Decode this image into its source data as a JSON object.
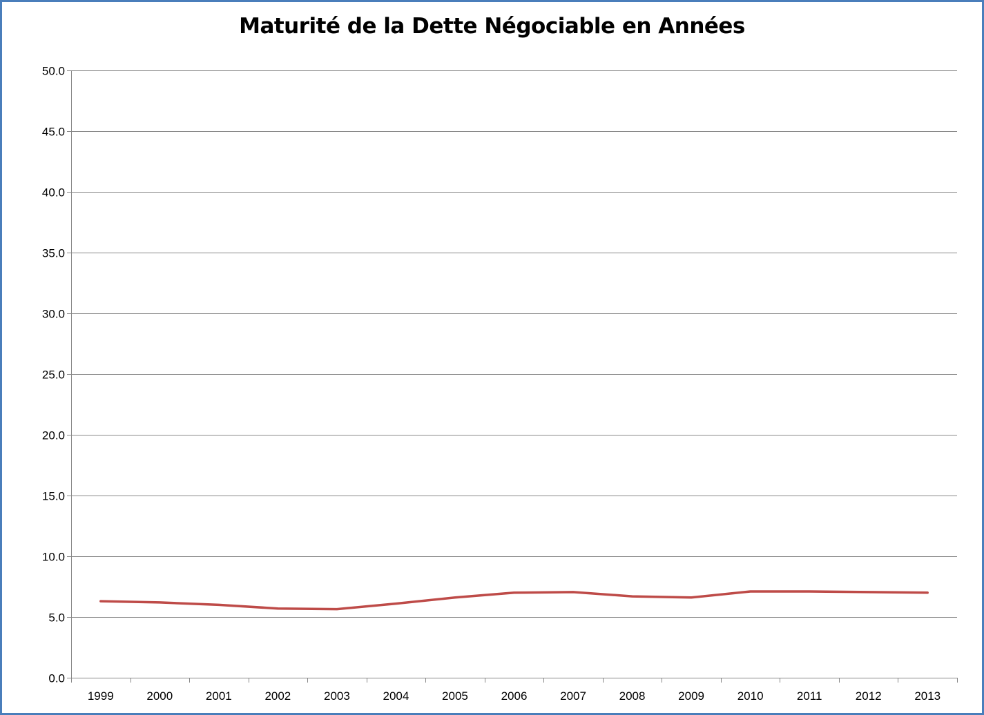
{
  "chart_data": {
    "type": "line",
    "title": "Maturité de la Dette Négociable en Années",
    "xlabel": "",
    "ylabel": "",
    "categories": [
      "1999",
      "2000",
      "2001",
      "2002",
      "2003",
      "2004",
      "2005",
      "2006",
      "2007",
      "2008",
      "2009",
      "2010",
      "2011",
      "2012",
      "2013"
    ],
    "series": [
      {
        "values": [
          6.3,
          6.2,
          6.0,
          5.7,
          5.65,
          6.1,
          6.6,
          7.0,
          7.05,
          6.7,
          6.6,
          7.1,
          7.1,
          7.05,
          7.0
        ],
        "color": "#be4b48"
      }
    ],
    "ylim": [
      0,
      50
    ],
    "y_ticks": [
      "0.0",
      "5.0",
      "10.0",
      "15.0",
      "20.0",
      "25.0",
      "30.0",
      "35.0",
      "40.0",
      "45.0",
      "50.0"
    ],
    "grid": true,
    "legend": "none"
  },
  "colors": {
    "border": "#4a7ebb",
    "gridline": "#868686",
    "line": "#be4b48"
  }
}
